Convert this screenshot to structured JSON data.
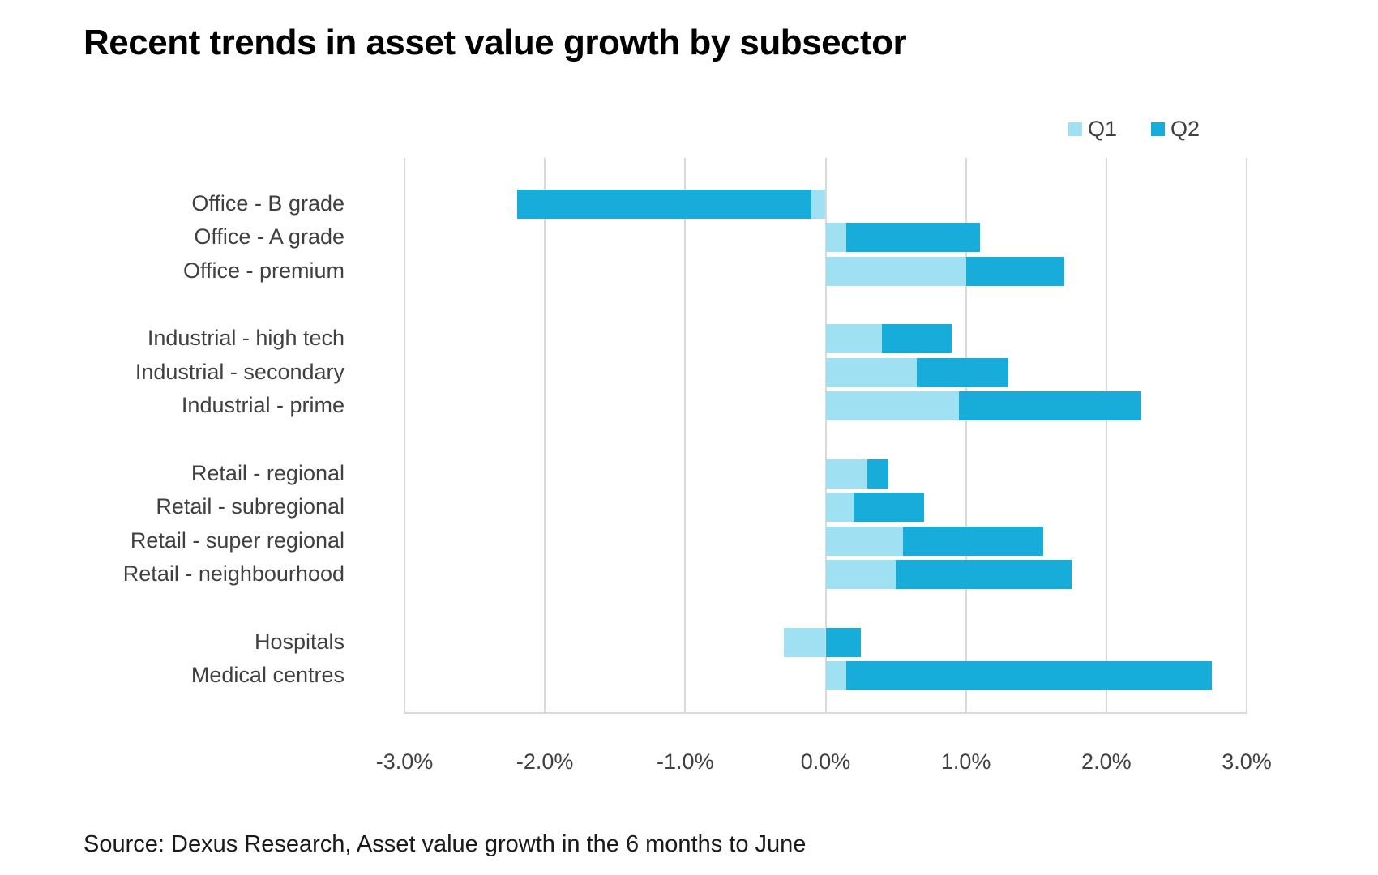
{
  "title": "Recent trends in asset value growth by subsector",
  "source": "Source: Dexus Research, Asset value growth in the 6 months to June",
  "legend": {
    "items": [
      {
        "label": "Q1",
        "color": "#a0e0f3"
      },
      {
        "label": "Q2",
        "color": "#18acdb"
      }
    ],
    "position": "top-right"
  },
  "colors": {
    "q1_light_blue": "#a0e0f3",
    "q2_dark_blue": "#18acdb",
    "gridline": "#d9d9d9",
    "label_text": "#404040",
    "title_text": "#000000"
  },
  "chart_data": {
    "type": "bar",
    "orientation": "horizontal",
    "stacked": true,
    "title": "Recent trends in asset value growth by subsector",
    "xlabel": "",
    "ylabel": "",
    "xlim": [
      -3,
      3
    ],
    "x_tick_labels": [
      "-3.0%",
      "-2.0%",
      "-1.0%",
      "0.0%",
      "1.0%",
      "2.0%",
      "3.0%"
    ],
    "x_tick_values": [
      -3,
      -2,
      -1,
      0,
      1,
      2,
      3
    ],
    "grid": "vertical-only",
    "legend_position": "top-right",
    "categories": [
      "Office - B grade",
      "Office - A grade",
      "Office - premium",
      "Industrial - high tech",
      "Industrial - secondary",
      "Industrial - prime",
      "Retail - regional",
      "Retail - subregional",
      "Retail - super regional",
      "Retail - neighbourhood",
      "Hospitals",
      "Medical centres"
    ],
    "gap_after_indices": [
      2,
      5,
      9
    ],
    "series": [
      {
        "name": "Q1",
        "unit": "%",
        "values": [
          -0.1,
          0.15,
          1.0,
          0.4,
          0.65,
          0.95,
          0.3,
          0.2,
          0.55,
          0.5,
          -0.3,
          0.15
        ]
      },
      {
        "name": "Q2",
        "unit": "%",
        "values": [
          -2.1,
          0.95,
          0.7,
          0.5,
          0.65,
          1.3,
          0.15,
          0.5,
          1.0,
          1.25,
          0.25,
          2.6
        ]
      }
    ]
  }
}
